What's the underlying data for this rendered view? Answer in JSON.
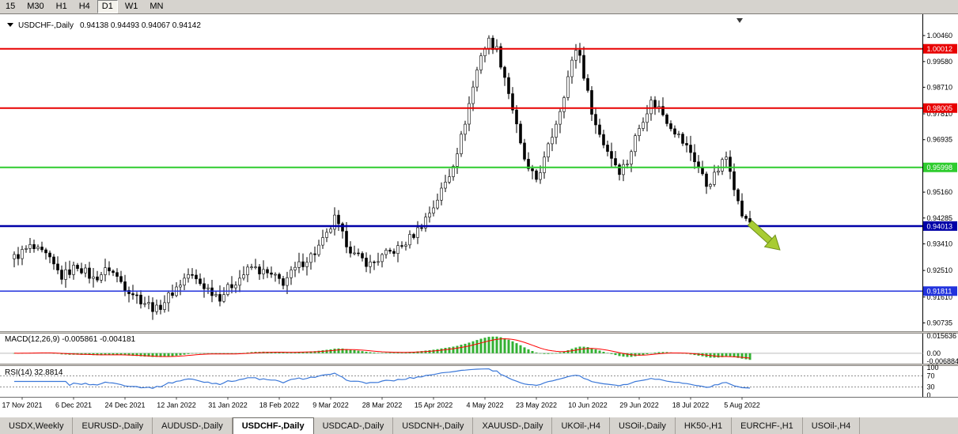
{
  "toolbar": {
    "timeframes": [
      {
        "label": "15",
        "active": false
      },
      {
        "label": "M30",
        "active": false
      },
      {
        "label": "H1",
        "active": false
      },
      {
        "label": "H4",
        "active": false
      },
      {
        "label": "D1",
        "active": true
      },
      {
        "label": "W1",
        "active": false
      },
      {
        "label": "MN",
        "active": false
      }
    ]
  },
  "chart_header": {
    "symbol": "USDCHF-,Daily",
    "ohlc": "0.94138 0.94493 0.94067 0.94142"
  },
  "chart_data": {
    "type": "candlestick_with_indicators",
    "symbol": "USDCHF",
    "timeframe": "Daily",
    "num_candles": 187,
    "close_anchors": [
      [
        0,
        0.9295
      ],
      [
        4,
        0.933
      ],
      [
        8,
        0.93
      ],
      [
        12,
        0.923
      ],
      [
        16,
        0.9268
      ],
      [
        20,
        0.9222
      ],
      [
        24,
        0.9258
      ],
      [
        28,
        0.9198
      ],
      [
        32,
        0.9152
      ],
      [
        36,
        0.9118
      ],
      [
        40,
        0.9178
      ],
      [
        44,
        0.9238
      ],
      [
        48,
        0.9198
      ],
      [
        52,
        0.9162
      ],
      [
        56,
        0.9215
      ],
      [
        60,
        0.9262
      ],
      [
        64,
        0.9238
      ],
      [
        68,
        0.9212
      ],
      [
        72,
        0.9268
      ],
      [
        76,
        0.9312
      ],
      [
        79,
        0.9368
      ],
      [
        81,
        0.9425
      ],
      [
        83,
        0.9368
      ],
      [
        86,
        0.9302
      ],
      [
        90,
        0.9272
      ],
      [
        94,
        0.9305
      ],
      [
        98,
        0.9332
      ],
      [
        102,
        0.9388
      ],
      [
        106,
        0.9468
      ],
      [
        110,
        0.9575
      ],
      [
        113,
        0.97
      ],
      [
        116,
        0.9872
      ],
      [
        118,
        0.9985
      ],
      [
        120,
        1.0028
      ],
      [
        122,
        0.9998
      ],
      [
        124,
        0.9908
      ],
      [
        126,
        0.9798
      ],
      [
        128,
        0.9672
      ],
      [
        130,
        0.9585
      ],
      [
        132,
        0.956
      ],
      [
        134,
        0.9625
      ],
      [
        136,
        0.9708
      ],
      [
        138,
        0.9798
      ],
      [
        140,
        0.9905
      ],
      [
        142,
        1.0002
      ],
      [
        143,
        0.9978
      ],
      [
        145,
        0.9848
      ],
      [
        147,
        0.9742
      ],
      [
        149,
        0.9682
      ],
      [
        151,
        0.9635
      ],
      [
        153,
        0.959
      ],
      [
        155,
        0.9618
      ],
      [
        157,
        0.97
      ],
      [
        159,
        0.9768
      ],
      [
        161,
        0.982
      ],
      [
        163,
        0.9802
      ],
      [
        165,
        0.976
      ],
      [
        167,
        0.9725
      ],
      [
        169,
        0.9685
      ],
      [
        171,
        0.9652
      ],
      [
        173,
        0.96
      ],
      [
        175,
        0.954
      ],
      [
        177,
        0.957
      ],
      [
        179,
        0.9615
      ],
      [
        180,
        0.9635
      ],
      [
        181,
        0.96
      ],
      [
        182,
        0.954
      ],
      [
        183,
        0.948
      ],
      [
        184,
        0.944
      ],
      [
        185,
        0.9418
      ],
      [
        186,
        0.9416
      ]
    ],
    "last_close": 0.94142,
    "price_axis": {
      "ticks": [
        "1.00460",
        "0.99580",
        "0.98710",
        "0.97810",
        "0.96935",
        "0.96060",
        "0.95160",
        "0.94285",
        "0.93410",
        "0.92510",
        "0.91610",
        "0.90735"
      ],
      "top_price": 1.0078,
      "bottom_price": 0.9048
    },
    "hlines": [
      {
        "price": 1.00012,
        "label": "1.00012",
        "color": "#E80000",
        "width": 2
      },
      {
        "price": 0.98005,
        "label": "0.98005",
        "color": "#E80000",
        "width": 2
      },
      {
        "price": 0.95998,
        "label": "0.95998",
        "color": "#2ECC2E",
        "width": 2
      },
      {
        "price": 0.94013,
        "label": "0.94013",
        "color": "#0000A8",
        "width": 2.5
      },
      {
        "price": 0.91811,
        "label": "0.91811",
        "color": "#2233DD",
        "width": 1.5
      }
    ],
    "date_ticks": {
      "labels": [
        "17 Nov 2021",
        "6 Dec 2021",
        "24 Dec 2021",
        "12 Jan 2022",
        "31 Jan 2022",
        "18 Feb 2022",
        "9 Mar 2022",
        "28 Mar 2022",
        "15 Apr 2022",
        "4 May 2022",
        "23 May 2022",
        "10 Jun 2022",
        "29 Jun 2022",
        "18 Jul 2022",
        "5 Aug 2022"
      ],
      "first_candle_index": 2,
      "step": 13
    },
    "macd": {
      "display": "MACD(12,26,9) -0.005861 -0.004181",
      "fast": 12,
      "slow": 26,
      "signal": 9,
      "current_main": -0.005861,
      "current_signal": -0.004181,
      "axis_max_label": "0.015636",
      "axis_zero_label": "0.00",
      "axis_min_label": "-0.006884",
      "histogram_color": "#33B133",
      "signal_color": "#FF0000"
    },
    "rsi": {
      "display": "RSI(14) 32.8814",
      "period": 14,
      "current_value": 32.8814,
      "levels": [
        70,
        30
      ],
      "axis_labels": [
        "100",
        "70",
        "30",
        "0"
      ],
      "line_color": "#3A77D8"
    },
    "arrow_object": {
      "color": "#A8CC33",
      "direction": "down-right"
    },
    "candle_up_fill": "#FFFFFF",
    "candle_down_fill": "#000000",
    "candle_border": "#000000"
  },
  "bottom_tabs": [
    {
      "label": "USDX,Weekly",
      "active": false
    },
    {
      "label": "EURUSD-,Daily",
      "active": false
    },
    {
      "label": "AUDUSD-,Daily",
      "active": false
    },
    {
      "label": "USDCHF-,Daily",
      "active": true
    },
    {
      "label": "USDCAD-,Daily",
      "active": false
    },
    {
      "label": "USDCNH-,Daily",
      "active": false
    },
    {
      "label": "XAUUSD-,Daily",
      "active": false
    },
    {
      "label": "UKOil-,H4",
      "active": false
    },
    {
      "label": "USOil-,Daily",
      "active": false
    },
    {
      "label": "HK50-,H1",
      "active": false
    },
    {
      "label": "EURCHF-,H1",
      "active": false
    },
    {
      "label": "USOil-,H4",
      "active": false
    }
  ]
}
